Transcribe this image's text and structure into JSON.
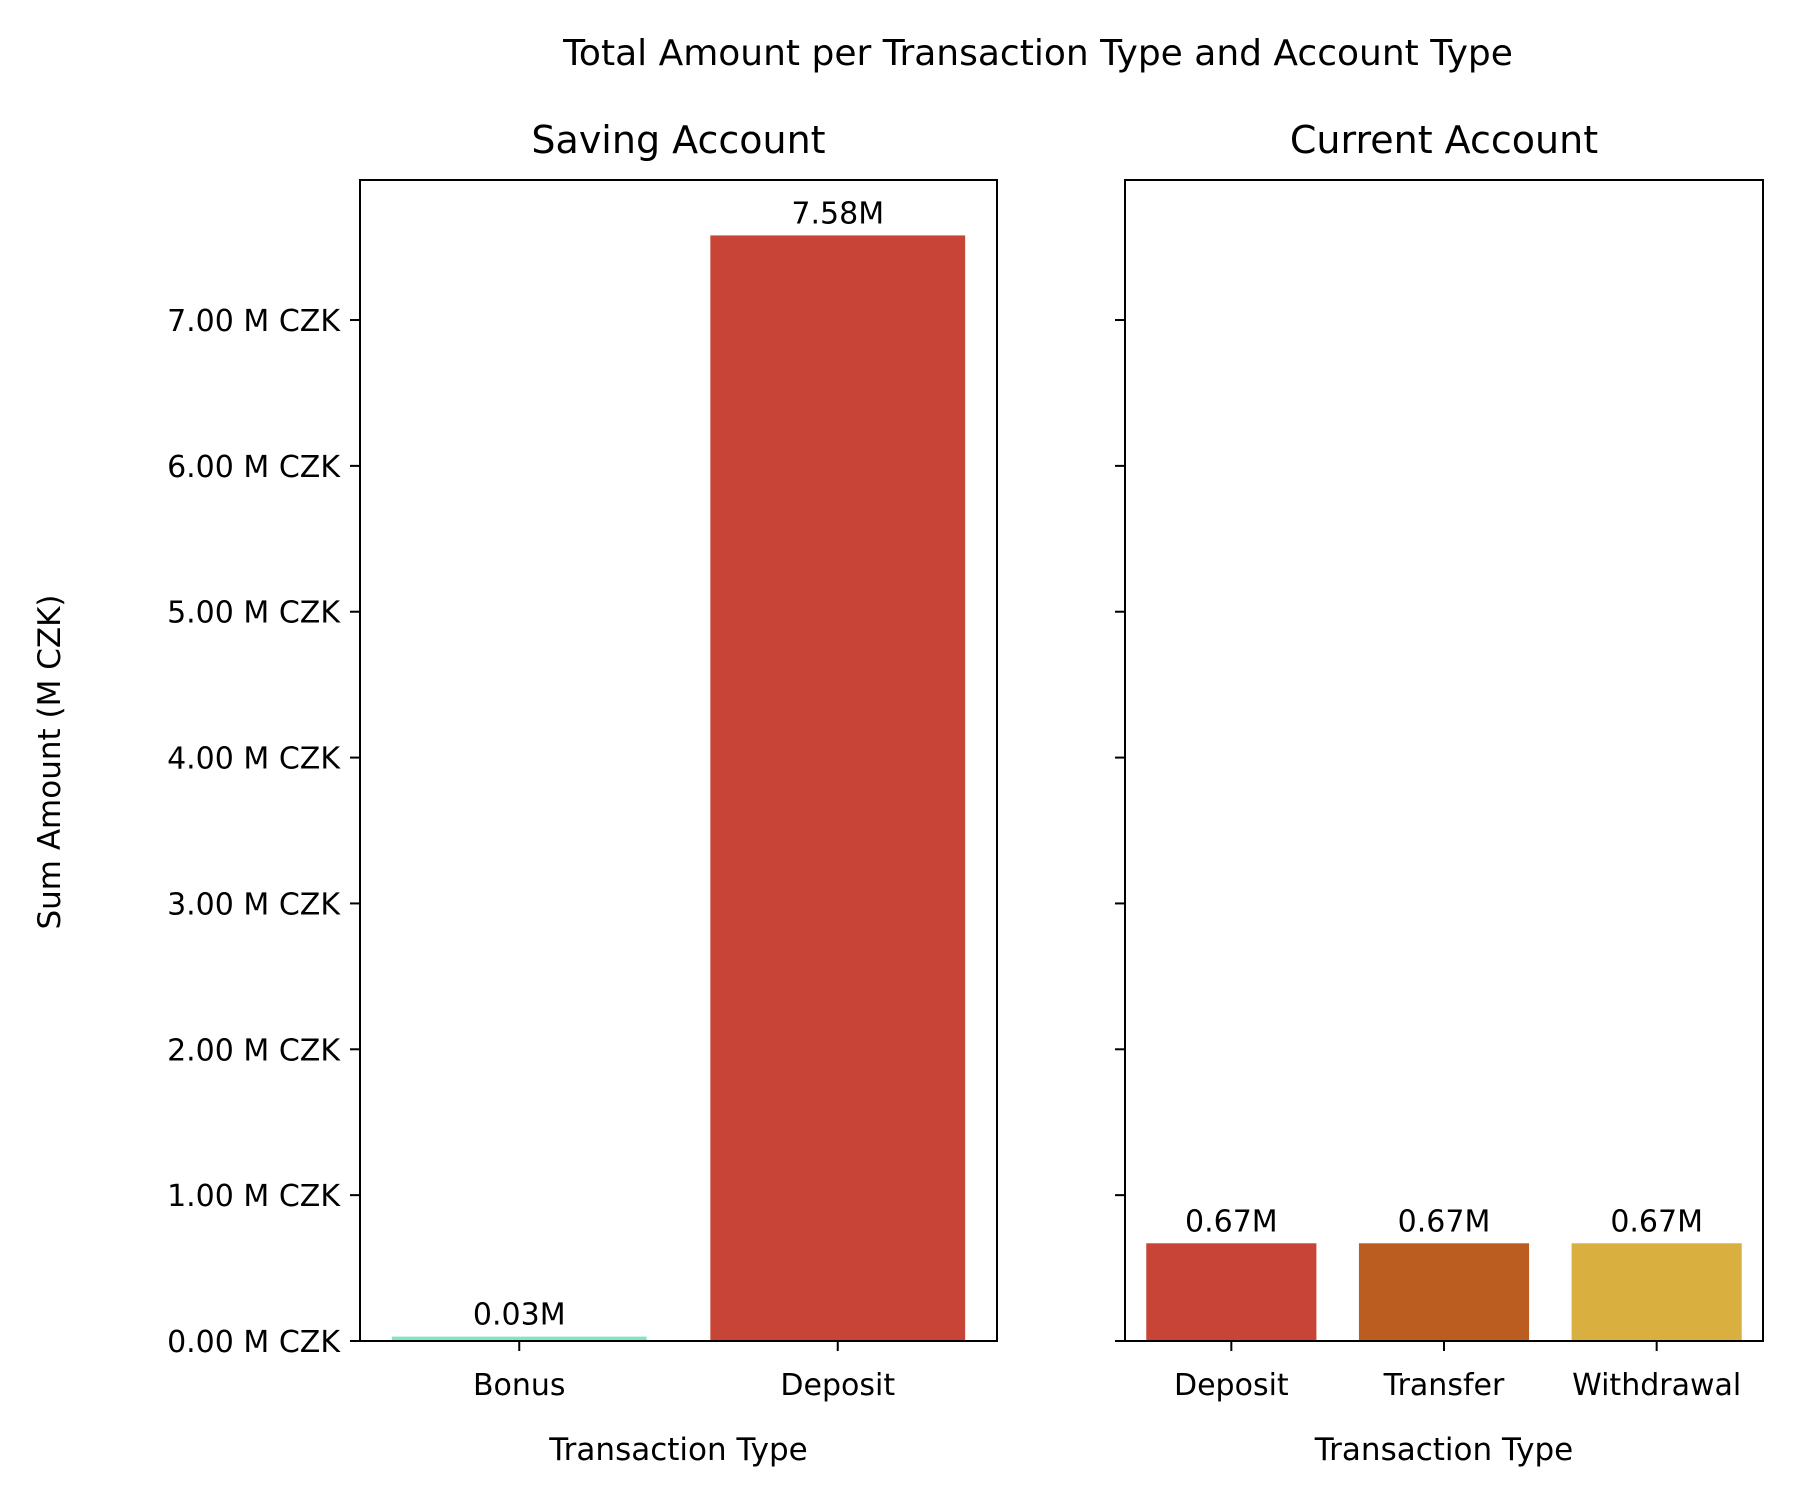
{
  "chart_data": {
    "type": "bar",
    "title": "Total Amount per Transaction Type and Account Type",
    "ylabel": "Sum Amount (M CZK)",
    "ylim": [
      0,
      7.96
    ],
    "yticks": [
      "0.00 M CZK",
      "1.00 M CZK",
      "2.00 M CZK",
      "3.00 M CZK",
      "4.00 M CZK",
      "5.00 M CZK",
      "6.00 M CZK",
      "7.00 M CZK"
    ],
    "sharey": true,
    "grid": false,
    "panels": [
      {
        "title": "Saving Account",
        "xlabel": "Transaction Type",
        "categories": [
          "Bonus",
          "Deposit"
        ],
        "values": [
          0.03,
          7.58
        ],
        "labels": [
          "0.03M",
          "7.58M"
        ],
        "colors": [
          "#7fe5c6",
          "#c84437"
        ]
      },
      {
        "title": "Current Account",
        "xlabel": "Transaction Type",
        "categories": [
          "Deposit",
          "Transfer",
          "Withdrawal"
        ],
        "values": [
          0.67,
          0.67,
          0.67
        ],
        "labels": [
          "0.67M",
          "0.67M",
          "0.67M"
        ],
        "colors": [
          "#c84437",
          "#bb5c20",
          "#d9b040"
        ]
      }
    ]
  }
}
